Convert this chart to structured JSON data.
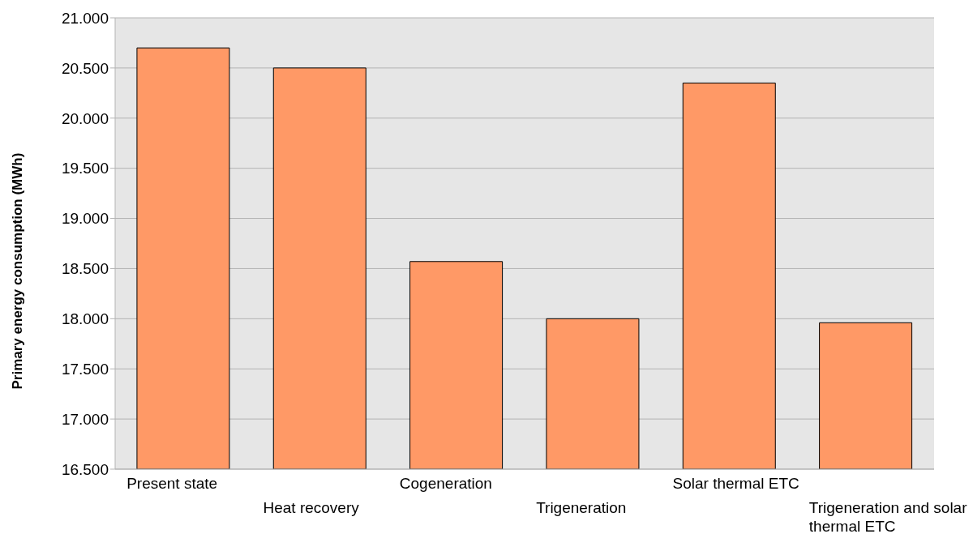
{
  "chart_data": {
    "type": "bar",
    "ylabel": "Primary energy consumption (MWh)",
    "categories": [
      "Present state",
      "Heat recovery",
      "Cogeneration",
      "Trigeneration",
      "Solar thermal ETC",
      "Trigeneration and solar thermal ETC"
    ],
    "values": [
      20700,
      20500,
      18570,
      18000,
      20350,
      17960
    ],
    "color": "#ff9966",
    "ylim": [
      16500,
      21000
    ],
    "yticks": [
      {
        "value": 16500,
        "label": "16.500"
      },
      {
        "value": 17000,
        "label": "17.000"
      },
      {
        "value": 17500,
        "label": "17.500"
      },
      {
        "value": 18000,
        "label": "18.000"
      },
      {
        "value": 18500,
        "label": "18.500"
      },
      {
        "value": 19000,
        "label": "19.000"
      },
      {
        "value": 19500,
        "label": "19.500"
      },
      {
        "value": 20000,
        "label": "20.000"
      },
      {
        "value": 20500,
        "label": "20.500"
      },
      {
        "value": 21000,
        "label": "21.000"
      }
    ],
    "grid": "y"
  }
}
